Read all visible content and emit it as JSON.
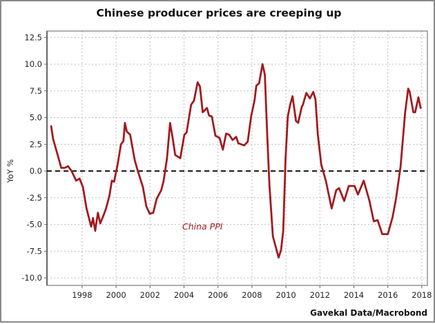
{
  "chart_data": {
    "type": "line",
    "title": "Chinese producer prices are creeping up",
    "xlabel": "",
    "ylabel": "YoY %",
    "source": "Gavekal Data/Macrobond",
    "xlim": [
      1995.93,
      2018.33
    ],
    "ylim": [
      -10.7,
      13.1
    ],
    "x_ticks": [
      1998,
      2000,
      2002,
      2004,
      2006,
      2008,
      2010,
      2012,
      2014,
      2016,
      2018
    ],
    "x_tick_labels": [
      "1998",
      "2000",
      "2002",
      "2004",
      "2006",
      "2008",
      "2010",
      "2012",
      "2014",
      "2016",
      "2018"
    ],
    "y_ticks": [
      12.5,
      10,
      7.5,
      5,
      2.5,
      0,
      -2.5,
      -5,
      -7.5,
      -10
    ],
    "y_tick_labels": [
      "12.5",
      "10.0",
      "7.5",
      "5.0",
      "2.5",
      "0.0",
      "-2.5",
      "-5.0",
      "-7.5",
      "-10.0"
    ],
    "grid": true,
    "zero_line": "dashed",
    "series": [
      {
        "name": "China PPI",
        "color": "#a31a1e",
        "x": [
          1996.18,
          1996.29,
          1996.56,
          1996.77,
          1996.97,
          1997.17,
          1997.38,
          1997.65,
          1997.85,
          1998.05,
          1998.26,
          1998.53,
          1998.64,
          1998.77,
          1998.93,
          1999.07,
          1999.27,
          1999.41,
          1999.61,
          1999.75,
          1999.88,
          2000.09,
          2000.29,
          2000.43,
          2000.52,
          2000.63,
          2000.83,
          2001.1,
          2001.3,
          2001.58,
          2001.78,
          2001.98,
          2002.19,
          2002.39,
          2002.66,
          2002.8,
          2003.0,
          2003.18,
          2003.34,
          2003.48,
          2003.78,
          2004.02,
          2004.15,
          2004.42,
          2004.59,
          2004.8,
          2004.94,
          2005.1,
          2005.35,
          2005.47,
          2005.64,
          2005.85,
          2006.09,
          2006.29,
          2006.48,
          2006.66,
          2006.86,
          2007.07,
          2007.2,
          2007.54,
          2007.75,
          2007.95,
          2008.15,
          2008.26,
          2008.42,
          2008.62,
          2008.76,
          2008.9,
          2009.03,
          2009.23,
          2009.57,
          2009.71,
          2009.84,
          2009.98,
          2010.11,
          2010.25,
          2010.39,
          2010.59,
          2010.72,
          2010.93,
          2011.0,
          2011.2,
          2011.41,
          2011.61,
          2011.74,
          2011.88,
          2012.08,
          2012.35,
          2012.69,
          2012.96,
          2013.13,
          2013.43,
          2013.7,
          2014.04,
          2014.24,
          2014.58,
          2014.92,
          2015.17,
          2015.4,
          2015.67,
          2016.0,
          2016.28,
          2016.48,
          2016.75,
          2017.02,
          2017.2,
          2017.29,
          2017.5,
          2017.61,
          2017.8,
          2017.93
        ],
        "y": [
          4.2,
          3.0,
          1.5,
          0.3,
          0.3,
          0.45,
          0.0,
          -0.9,
          -0.7,
          -1.5,
          -3.5,
          -5.2,
          -4.4,
          -5.6,
          -3.9,
          -4.9,
          -4.1,
          -3.5,
          -2.3,
          -0.9,
          -1.0,
          0.6,
          2.5,
          2.8,
          4.5,
          3.7,
          3.4,
          1.0,
          -0.1,
          -1.5,
          -3.3,
          -4.0,
          -3.9,
          -2.6,
          -1.8,
          -0.9,
          1.2,
          4.5,
          3.0,
          1.5,
          1.2,
          3.4,
          3.6,
          6.2,
          6.6,
          8.3,
          7.9,
          5.5,
          5.9,
          5.2,
          5.1,
          3.3,
          3.1,
          2.0,
          3.5,
          3.4,
          2.9,
          3.2,
          2.6,
          2.4,
          2.75,
          5.1,
          6.6,
          8.0,
          8.2,
          10.0,
          9.0,
          3.4,
          -1.3,
          -6.1,
          -8.1,
          -7.4,
          -5.6,
          1.2,
          5.1,
          6.2,
          7.0,
          4.7,
          4.5,
          6.0,
          6.2,
          7.3,
          6.8,
          7.4,
          6.7,
          3.4,
          0.6,
          -0.9,
          -3.5,
          -1.8,
          -1.6,
          -2.8,
          -1.4,
          -1.4,
          -2.2,
          -0.9,
          -2.8,
          -4.7,
          -4.6,
          -5.9,
          -5.9,
          -4.3,
          -2.6,
          0.4,
          5.5,
          7.7,
          7.4,
          5.5,
          5.5,
          6.9,
          5.9
        ]
      }
    ]
  }
}
